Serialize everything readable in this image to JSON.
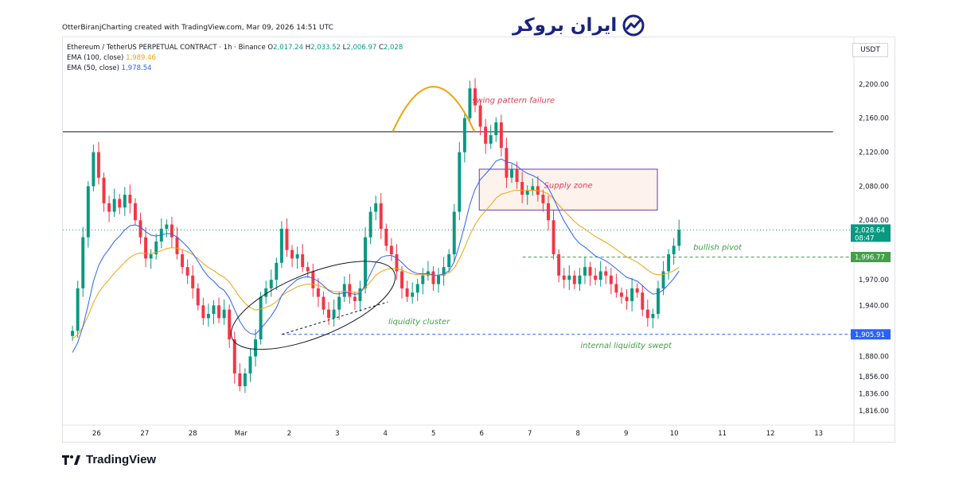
{
  "attribution": "OtterBiranjCharting created with TradingView.com, Mar 09, 2026 14:51 UTC",
  "brand": {
    "name": "ایران بروکر",
    "icon": "chart-trend-icon"
  },
  "footer": {
    "logo": "TradingView",
    "icon": "tradingview-logo-icon"
  },
  "legend": {
    "symbol": "Ethereum / TetherUS PERPETUAL CONTRACT · 1h · Binance",
    "o_label": "O",
    "o": "2,017.24",
    "h_label": "H",
    "h": "2,033.52",
    "l_label": "L",
    "l": "2,006.97",
    "c_label": "C",
    "c": "2,028",
    "ema100_label": "EMA (100, close)",
    "ema100": "1,989.46",
    "ema50_label": "EMA (50, close)",
    "ema50": "1,978.54"
  },
  "colors": {
    "up": "#089981",
    "down": "#f23645",
    "ema100": "#f0a30a",
    "ema50": "#2962ff",
    "annotation_red": "#e53955",
    "annotation_green": "#43a047",
    "zone": "#673ab7"
  },
  "chart_data": {
    "type": "candlestick",
    "timeframe": "1h",
    "currency": "USDT",
    "y_ticks": [
      "2,200.00",
      "2,160.00",
      "2,120.00",
      "2,080.00",
      "2,040.00",
      "1,970.00",
      "1,940.00",
      "1,880.00",
      "1,856.00",
      "1,836.00",
      "1,816.00"
    ],
    "y_tick_values": [
      2200,
      2160,
      2120,
      2080,
      2040,
      1970,
      1940,
      1880,
      1856,
      1836,
      1816
    ],
    "x_ticks": [
      "26",
      "27",
      "28",
      "Mar",
      "2",
      "3",
      "4",
      "5",
      "6",
      "7",
      "8",
      "9",
      "10",
      "11",
      "12",
      "13"
    ],
    "x_tick_positions": [
      0.5,
      1.5,
      2.5,
      3.5,
      4.5,
      5.5,
      6.5,
      7.5,
      8.5,
      9.5,
      10.5,
      11.5,
      12.5,
      13.5,
      14.5,
      15.5
    ],
    "x_range": [
      -0.2,
      16.2
    ],
    "y_range": [
      1803,
      2212
    ],
    "closes": [
      1910,
      1960,
      2020,
      2080,
      2120,
      2090,
      2060,
      2050,
      2065,
      2055,
      2070,
      2060,
      2040,
      2020,
      1995,
      2000,
      2015,
      2030,
      2035,
      2020,
      2000,
      1985,
      1975,
      1960,
      1940,
      1925,
      1930,
      1940,
      1925,
      1935,
      1900,
      1860,
      1845,
      1860,
      1880,
      1900,
      1950,
      1960,
      1970,
      1990,
      2030,
      2005,
      1995,
      2000,
      1985,
      1980,
      1960,
      1950,
      1935,
      1925,
      1935,
      1950,
      1965,
      1950,
      1945,
      1960,
      2020,
      2050,
      2060,
      2030,
      2010,
      2000,
      1980,
      1960,
      1950,
      1955,
      1965,
      1975,
      1980,
      1965,
      1975,
      1985,
      2000,
      2050,
      2120,
      2160,
      2195,
      2175,
      2150,
      2130,
      2140,
      2155,
      2125,
      2090,
      2100,
      2085,
      2070,
      2075,
      2080,
      2070,
      2060,
      2040,
      2000,
      1975,
      1970,
      1975,
      1965,
      1975,
      1985,
      1975,
      1970,
      1980,
      1975,
      1965,
      1955,
      1950,
      1945,
      1960,
      1955,
      1935,
      1925,
      1930,
      1960,
      1980,
      2000,
      2010,
      2028.64
    ],
    "ema100_end": 1989.46,
    "ema50_end": 1978.54,
    "last_price": "2,028.64",
    "countdown": "08:47",
    "levels": [
      {
        "name": "resistance-line",
        "value": 2144,
        "style": "solid",
        "color": "#131722"
      },
      {
        "name": "last-price-line",
        "value": 2028.64,
        "style": "dotted",
        "color": "#089981"
      },
      {
        "name": "bullish-pivot-line",
        "value": 1996.77,
        "style": "dashed",
        "color": "#43a047",
        "label": "1,996.77"
      },
      {
        "name": "internal-liquidity-line",
        "value": 1905.91,
        "style": "dashed",
        "color": "#2962ff",
        "label": "1,905.91"
      }
    ],
    "annotations": [
      {
        "name": "swing-pattern-failure-label",
        "text": "swing pattern failure",
        "color": "#e53955"
      },
      {
        "name": "supply-zone-label",
        "text": "Supply zone",
        "color": "#e53955"
      },
      {
        "name": "bullish-pivot-label",
        "text": "bullish pivot",
        "color": "#43a047"
      },
      {
        "name": "liquidity-cluster-label",
        "text": "liquidity cluster",
        "color": "#43a047"
      },
      {
        "name": "internal-liquidity-swept-label",
        "text": "internal liquidity swept",
        "color": "#43a047"
      }
    ],
    "supply_zone": {
      "x_start": 8.45,
      "x_end": 12.15,
      "y_low": 2052,
      "y_high": 2100
    }
  }
}
